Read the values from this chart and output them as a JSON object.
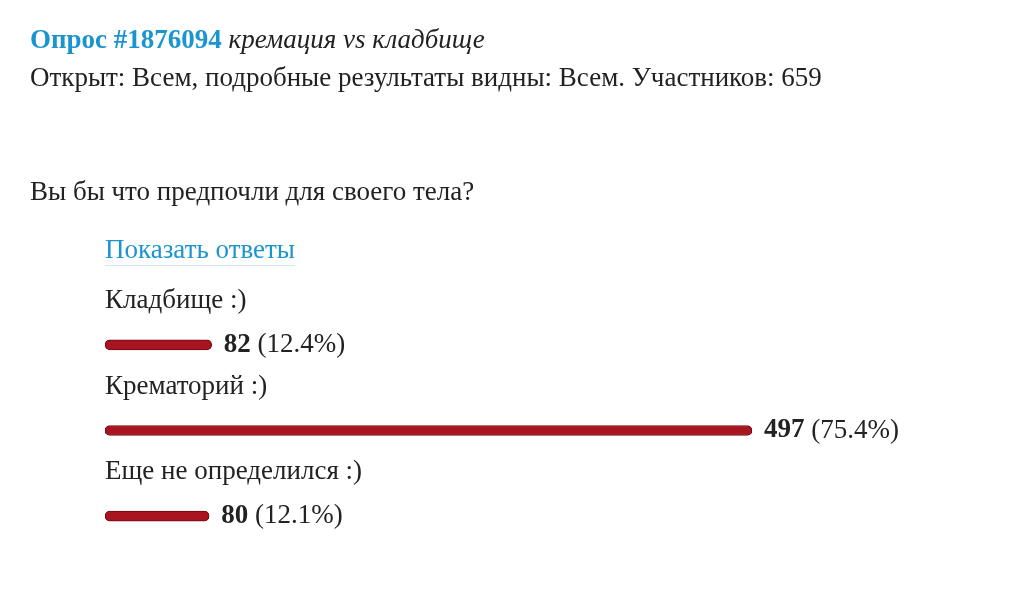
{
  "chart_data": {
    "type": "bar",
    "orientation": "horizontal",
    "title": "Опрос #1876094",
    "subtitle": "кремация vs кладбище",
    "annotations": [
      "Открыт: Всем, подробные результаты видны: Всем. Участников: 659",
      "Вы бы что предпочли для своего тела?",
      "Показать ответы"
    ],
    "categories": [
      "Кладбище :)",
      "Крематорий :)",
      "Еще не определился :)"
    ],
    "values": [
      82,
      497,
      80
    ],
    "value_labels": [
      "82 (12.4%)",
      "497 (75.4%)",
      "80 (12.1%)"
    ],
    "color": "#a8141f",
    "legend": false
  }
}
